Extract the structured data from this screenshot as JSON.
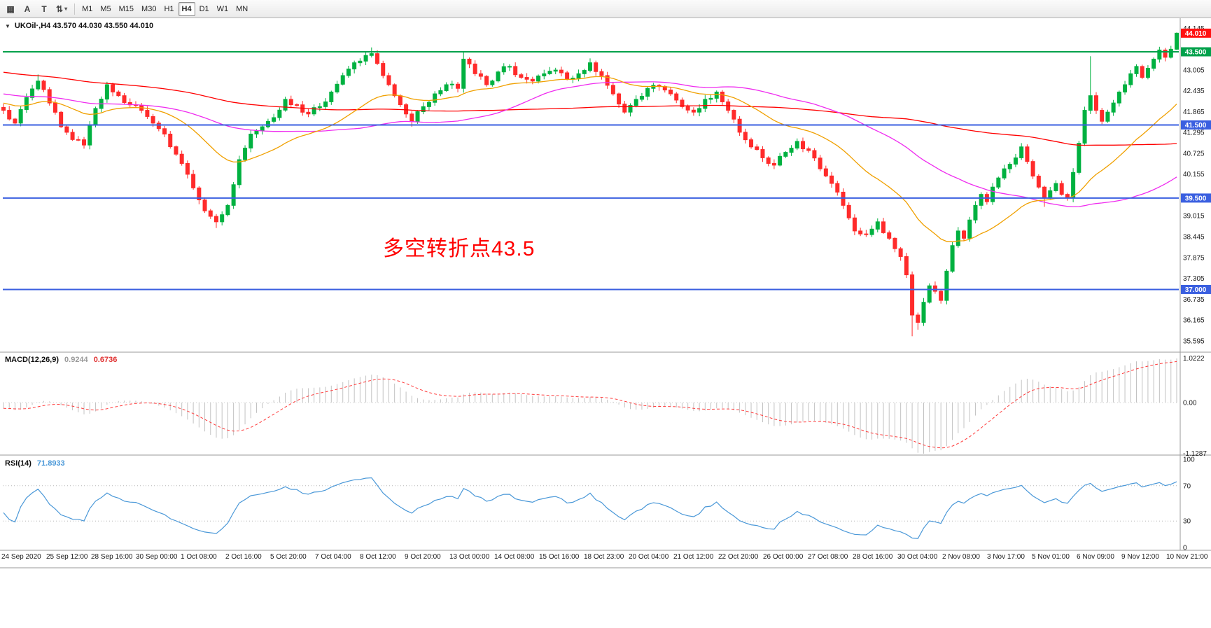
{
  "toolbar": {
    "icons": [
      {
        "name": "chart-icon",
        "glyph": "▦"
      },
      {
        "name": "cursor-letter-a-icon",
        "glyph": "A"
      },
      {
        "name": "text-tool-icon",
        "glyph": "T"
      },
      {
        "name": "style-switch-icon",
        "glyph": "⇅"
      }
    ],
    "dropdown_caret": "▾",
    "timeframes": [
      "M1",
      "M5",
      "M15",
      "M30",
      "H1",
      "H4",
      "D1",
      "W1",
      "MN"
    ],
    "active_timeframe": "H4"
  },
  "chart": {
    "collapse_icon": "▼",
    "symbol_header": "UKOil·,H4  43.570 44.030 43.550 44.010",
    "annotation": "多空转折点43.5"
  },
  "macd": {
    "label": "MACD(12,26,9)",
    "value_main": "0.9244",
    "value_signal": "0.6736"
  },
  "rsi": {
    "label": "RSI(14)",
    "value": "71.8933"
  },
  "time_axis": [
    "24 Sep 2020",
    "25 Sep 12:00",
    "28 Sep 16:00",
    "30 Sep 00:00",
    "1 Oct 08:00",
    "2 Oct 16:00",
    "5 Oct 20:00",
    "7 Oct 04:00",
    "8 Oct 12:00",
    "9 Oct 20:00",
    "13 Oct 00:00",
    "14 Oct 08:00",
    "15 Oct 16:00",
    "18 Oct 23:00",
    "20 Oct 04:00",
    "21 Oct 12:00",
    "22 Oct 20:00",
    "26 Oct 00:00",
    "27 Oct 08:00",
    "28 Oct 16:00",
    "30 Oct 04:00",
    "2 Nov 08:00",
    "3 Nov 17:00",
    "5 Nov 01:00",
    "6 Nov 09:00",
    "9 Nov 12:00",
    "10 Nov 21:00"
  ],
  "chart_data": [
    {
      "type": "candlestick",
      "symbol": "UKOil",
      "timeframe": "H4",
      "ohlc_current": {
        "open": 43.57,
        "high": 44.03,
        "low": 43.55,
        "close": 44.01
      },
      "bars": 205,
      "ylim": [
        35.4,
        44.4
      ],
      "price_ticks": [
        "44.145",
        "43.005",
        "42.435",
        "41.865",
        "41.295",
        "40.725",
        "40.155",
        "39.015",
        "38.445",
        "37.875",
        "37.305",
        "36.735",
        "36.165",
        "35.595"
      ],
      "last_price_label": "44.010",
      "last_price_color": "#ff1111",
      "up_color": "#00b140",
      "down_color": "#ff2b2b",
      "hlines": [
        {
          "price": 43.5,
          "label": "43.500",
          "color": "#00a14b"
        },
        {
          "price": 41.5,
          "label": "41.500",
          "color": "#3a5fe0"
        },
        {
          "price": 39.5,
          "label": "39.500",
          "color": "#3a5fe0"
        },
        {
          "price": 37.0,
          "label": "37.000",
          "color": "#3a5fe0"
        }
      ],
      "moving_averages": [
        {
          "name": "ma-slow",
          "method": "sma",
          "period": 120,
          "color": "#ff0000"
        },
        {
          "name": "ma-medium",
          "method": "sma",
          "period": 55,
          "color": "#ef2cef"
        },
        {
          "name": "ma-fast",
          "method": "ema",
          "period": 26,
          "color": "#f0a000"
        }
      ],
      "prehistory": {
        "bars": 130,
        "from": 44.2,
        "to": 41.9
      },
      "close_anchors": [
        [
          0,
          41.9
        ],
        [
          2,
          41.55
        ],
        [
          4,
          42.25
        ],
        [
          6,
          42.7
        ],
        [
          8,
          42.1
        ],
        [
          10,
          41.45
        ],
        [
          12,
          41.1
        ],
        [
          14,
          40.95
        ],
        [
          16,
          41.95
        ],
        [
          18,
          42.6
        ],
        [
          20,
          42.3
        ],
        [
          22,
          42.05
        ],
        [
          24,
          41.9
        ],
        [
          26,
          41.55
        ],
        [
          28,
          41.25
        ],
        [
          30,
          40.7
        ],
        [
          32,
          40.15
        ],
        [
          34,
          39.45
        ],
        [
          36,
          39.0
        ],
        [
          37,
          38.85
        ],
        [
          39,
          39.3
        ],
        [
          41,
          40.55
        ],
        [
          43,
          41.25
        ],
        [
          45,
          41.45
        ],
        [
          47,
          41.7
        ],
        [
          49,
          42.2
        ],
        [
          51,
          42.05
        ],
        [
          53,
          41.8
        ],
        [
          55,
          42.0
        ],
        [
          57,
          42.4
        ],
        [
          59,
          42.85
        ],
        [
          61,
          43.2
        ],
        [
          63,
          43.4
        ],
        [
          64,
          43.45
        ],
        [
          66,
          42.85
        ],
        [
          68,
          42.3
        ],
        [
          70,
          41.8
        ],
        [
          71,
          41.6
        ],
        [
          73,
          42.0
        ],
        [
          75,
          42.35
        ],
        [
          77,
          42.6
        ],
        [
          79,
          42.5
        ],
        [
          80,
          43.3
        ],
        [
          82,
          42.9
        ],
        [
          84,
          42.6
        ],
        [
          86,
          42.95
        ],
        [
          88,
          43.1
        ],
        [
          90,
          42.8
        ],
        [
          92,
          42.7
        ],
        [
          94,
          42.9
        ],
        [
          96,
          43.0
        ],
        [
          98,
          42.75
        ],
        [
          100,
          42.9
        ],
        [
          102,
          43.2
        ],
        [
          104,
          42.85
        ],
        [
          106,
          42.35
        ],
        [
          108,
          41.85
        ],
        [
          110,
          42.2
        ],
        [
          112,
          42.5
        ],
        [
          114,
          42.55
        ],
        [
          116,
          42.35
        ],
        [
          118,
          42.0
        ],
        [
          120,
          41.85
        ],
        [
          122,
          42.2
        ],
        [
          124,
          42.4
        ],
        [
          126,
          41.9
        ],
        [
          128,
          41.3
        ],
        [
          130,
          40.9
        ],
        [
          132,
          40.6
        ],
        [
          134,
          40.4
        ],
        [
          136,
          40.75
        ],
        [
          138,
          41.05
        ],
        [
          140,
          40.8
        ],
        [
          142,
          40.3
        ],
        [
          144,
          39.9
        ],
        [
          146,
          39.3
        ],
        [
          148,
          38.6
        ],
        [
          150,
          38.5
        ],
        [
          152,
          38.85
        ],
        [
          154,
          38.4
        ],
        [
          156,
          37.9
        ],
        [
          157,
          37.4
        ],
        [
          158,
          36.3
        ],
        [
          159,
          36.1
        ],
        [
          160,
          36.65
        ],
        [
          161,
          37.1
        ],
        [
          162,
          36.95
        ],
        [
          163,
          36.7
        ],
        [
          164,
          37.5
        ],
        [
          165,
          38.2
        ],
        [
          166,
          38.6
        ],
        [
          167,
          38.4
        ],
        [
          168,
          38.9
        ],
        [
          169,
          39.3
        ],
        [
          170,
          39.6
        ],
        [
          171,
          39.4
        ],
        [
          172,
          39.8
        ],
        [
          174,
          40.3
        ],
        [
          176,
          40.6
        ],
        [
          177,
          40.9
        ],
        [
          178,
          40.5
        ],
        [
          179,
          40.1
        ],
        [
          180,
          39.8
        ],
        [
          181,
          39.5
        ],
        [
          182,
          39.7
        ],
        [
          183,
          39.9
        ],
        [
          184,
          39.6
        ],
        [
          185,
          39.5
        ],
        [
          186,
          40.2
        ],
        [
          187,
          41.0
        ],
        [
          188,
          41.9
        ],
        [
          189,
          42.3
        ],
        [
          190,
          41.9
        ],
        [
          191,
          41.6
        ],
        [
          192,
          41.85
        ],
        [
          193,
          42.1
        ],
        [
          194,
          42.4
        ],
        [
          195,
          42.6
        ],
        [
          196,
          42.9
        ],
        [
          197,
          43.1
        ],
        [
          198,
          42.8
        ],
        [
          199,
          43.05
        ],
        [
          200,
          43.3
        ],
        [
          201,
          43.55
        ],
        [
          202,
          43.35
        ],
        [
          203,
          43.57
        ],
        [
          204,
          44.01
        ]
      ],
      "wick_overrides": [
        [
          6,
          "h",
          42.88
        ],
        [
          14,
          "l",
          40.85
        ],
        [
          37,
          "l",
          38.68
        ],
        [
          64,
          "h",
          43.62
        ],
        [
          71,
          "l",
          41.45
        ],
        [
          80,
          "h",
          43.52
        ],
        [
          102,
          "h",
          43.32
        ],
        [
          158,
          "l",
          35.72
        ],
        [
          159,
          "l",
          35.9
        ],
        [
          181,
          "l",
          39.26
        ],
        [
          189,
          "h",
          43.38
        ]
      ]
    },
    {
      "type": "bar",
      "name": "MACD",
      "params": [
        12,
        26,
        9
      ],
      "value_main": 0.9244,
      "value_signal": 0.6736,
      "axis_labels": [
        "1.0222",
        "0.00",
        "-1.1287"
      ],
      "histogram_color": "#c2c2c2",
      "signal_color": "#ff3b3b",
      "signal_style": "dashed",
      "derived": "computed from candlestick closes"
    },
    {
      "type": "line",
      "name": "RSI",
      "params": [
        14
      ],
      "value": 71.8933,
      "axis_labels": [
        "100",
        "70",
        "30",
        "0"
      ],
      "levels": [
        70,
        30
      ],
      "line_color": "#4a98d8",
      "derived": "computed from candlestick closes"
    }
  ]
}
